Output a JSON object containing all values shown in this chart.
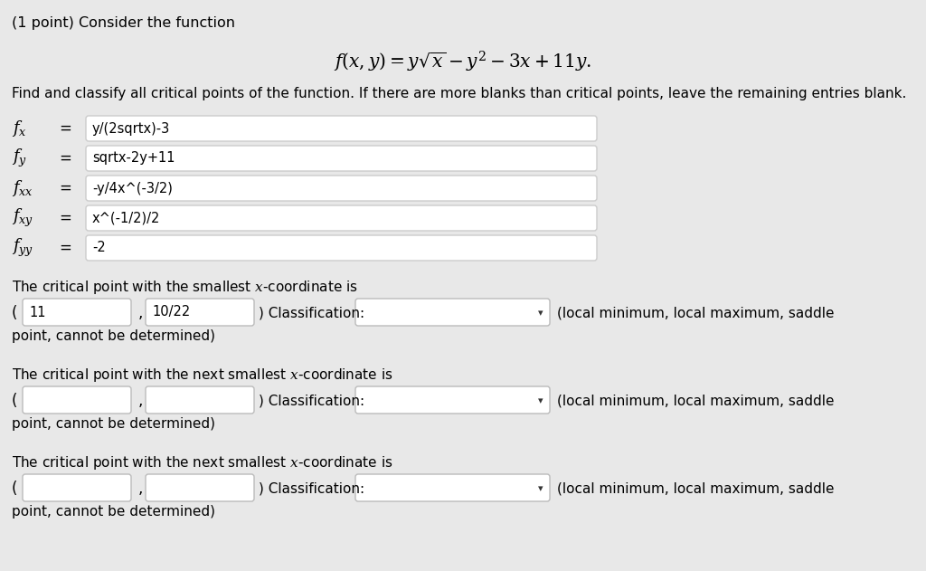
{
  "bg_color": "#e8e8e8",
  "white": "#ffffff",
  "text_color": "#000000",
  "title_line1": "(1 point) Consider the function",
  "formula": "$f(x, y) = y\\sqrt{x} - y^2 - 3x + 11y.$",
  "instruction": "Find and classify all critical points of the function. If there are more blanks than critical points, leave the remaining entries blank.",
  "deriv_labels": [
    "$f_x$",
    "$f_y$",
    "$f_{xx}$",
    "$f_{xy}$",
    "$f_{yy}$"
  ],
  "deriv_values": [
    "y/(2sqrtx)-3",
    "sqrtx-2y+11",
    "-y/4x^(-3/2)",
    "x^(-1/2)/2",
    "-2"
  ],
  "cp_intros": [
    "The critical point with the smallest $x$-coordinate is",
    "The critical point with the next smallest $x$-coordinate is",
    "The critical point with the next smallest $x$-coordinate is"
  ],
  "cp_x_vals": [
    "11",
    "",
    ""
  ],
  "cp_y_vals": [
    "10/22",
    "",
    ""
  ],
  "dropdown_text": "(local minimum, local maximum, saddle",
  "note_text": "point, cannot be determined)",
  "box_border": "#cccccc",
  "box_border_dark": "#bbbbbb",
  "figwidth": 10.24,
  "figheight": 6.31,
  "dpi": 100
}
